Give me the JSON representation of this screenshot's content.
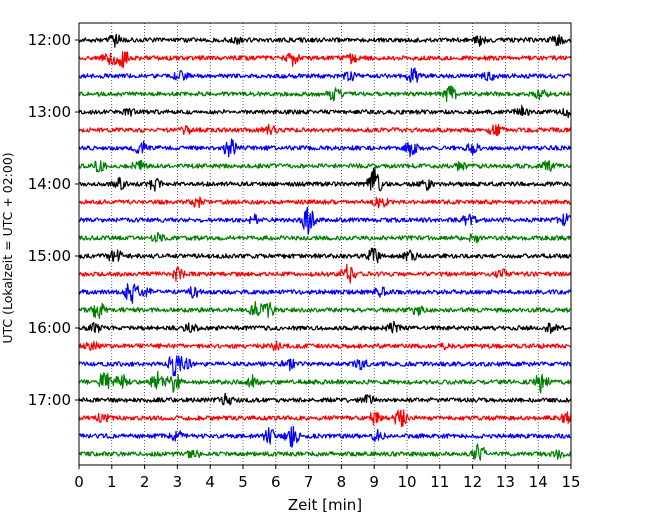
{
  "chart_data": {
    "type": "line",
    "title": "",
    "xlabel": "Zeit  [min]",
    "ylabel": "UTC (Lokalzeit = UTC + 02:00)",
    "xlim": [
      0,
      15
    ],
    "x_ticks": [
      "0",
      "1",
      "2",
      "3",
      "4",
      "5",
      "6",
      "7",
      "8",
      "9",
      "10",
      "11",
      "12",
      "13",
      "14",
      "15"
    ],
    "y_tick_labels": [
      "12:00",
      "13:00",
      "14:00",
      "15:00",
      "16:00",
      "17:00"
    ],
    "grid": "vertical dotted",
    "trace_colors": [
      "#000000",
      "#ff0000",
      "#0000ff",
      "#008000"
    ],
    "trace_interval_min": 15,
    "traces": [
      {
        "start": "12:00",
        "color": "#000000",
        "events": [
          [
            1.1,
            0.6
          ],
          [
            4.8,
            0.4
          ],
          [
            12.2,
            0.5
          ],
          [
            14.6,
            0.5
          ]
        ]
      },
      {
        "start": "12:15",
        "color": "#ff0000",
        "events": [
          [
            0.9,
            0.9
          ],
          [
            1.3,
            1.2
          ],
          [
            6.5,
            0.8
          ],
          [
            8.3,
            0.5
          ]
        ]
      },
      {
        "start": "12:30",
        "color": "#0000ff",
        "events": [
          [
            3.1,
            0.5
          ],
          [
            8.2,
            0.6
          ],
          [
            10.2,
            0.8
          ],
          [
            12.5,
            0.5
          ]
        ]
      },
      {
        "start": "12:45",
        "color": "#008000",
        "events": [
          [
            7.8,
            0.8
          ],
          [
            11.3,
            0.9
          ],
          [
            14.1,
            0.5
          ]
        ]
      },
      {
        "start": "13:00",
        "color": "#000000",
        "events": [
          [
            1.5,
            0.4
          ],
          [
            13.5,
            0.5
          ],
          [
            14.9,
            0.5
          ]
        ]
      },
      {
        "start": "13:15",
        "color": "#ff0000",
        "events": [
          [
            3.3,
            0.4
          ],
          [
            5.8,
            0.5
          ],
          [
            12.7,
            0.6
          ]
        ]
      },
      {
        "start": "13:30",
        "color": "#0000ff",
        "events": [
          [
            1.9,
            0.8
          ],
          [
            4.6,
            1.0
          ],
          [
            10.1,
            0.8
          ],
          [
            12.0,
            0.5
          ]
        ]
      },
      {
        "start": "13:45",
        "color": "#008000",
        "events": [
          [
            0.6,
            0.5
          ],
          [
            1.8,
            0.6
          ],
          [
            11.6,
            0.5
          ],
          [
            14.3,
            0.5
          ]
        ]
      },
      {
        "start": "14:00",
        "color": "#000000",
        "events": [
          [
            1.2,
            0.6
          ],
          [
            2.3,
            0.6
          ],
          [
            9.0,
            1.7
          ],
          [
            10.6,
            0.5
          ]
        ]
      },
      {
        "start": "14:15",
        "color": "#ff0000",
        "events": [
          [
            3.6,
            0.5
          ],
          [
            9.2,
            0.6
          ]
        ]
      },
      {
        "start": "14:30",
        "color": "#0000ff",
        "events": [
          [
            5.4,
            0.6
          ],
          [
            7.0,
            1.6
          ],
          [
            11.9,
            0.6
          ],
          [
            14.8,
            0.6
          ]
        ]
      },
      {
        "start": "14:45",
        "color": "#008000",
        "events": [
          [
            2.4,
            0.4
          ],
          [
            12.1,
            0.5
          ]
        ]
      },
      {
        "start": "15:00",
        "color": "#000000",
        "events": [
          [
            1.1,
            0.8
          ],
          [
            9.0,
            1.0
          ],
          [
            10.1,
            0.5
          ]
        ]
      },
      {
        "start": "15:15",
        "color": "#ff0000",
        "events": [
          [
            3.0,
            0.8
          ],
          [
            8.2,
            1.1
          ],
          [
            12.9,
            0.5
          ]
        ]
      },
      {
        "start": "15:30",
        "color": "#0000ff",
        "events": [
          [
            1.6,
            1.2
          ],
          [
            2.0,
            0.5
          ],
          [
            3.5,
            0.6
          ],
          [
            9.2,
            0.5
          ]
        ]
      },
      {
        "start": "15:45",
        "color": "#008000",
        "events": [
          [
            0.6,
            1.1
          ],
          [
            5.4,
            0.8
          ],
          [
            5.8,
            0.7
          ],
          [
            10.3,
            0.5
          ]
        ]
      },
      {
        "start": "16:00",
        "color": "#000000",
        "events": [
          [
            0.5,
            0.5
          ],
          [
            3.4,
            0.4
          ],
          [
            9.6,
            0.5
          ],
          [
            14.4,
            0.5
          ]
        ]
      },
      {
        "start": "16:15",
        "color": "#ff0000",
        "events": [
          [
            0.4,
            0.4
          ],
          [
            6.0,
            0.5
          ],
          [
            11.2,
            0.4
          ]
        ]
      },
      {
        "start": "16:30",
        "color": "#0000ff",
        "events": [
          [
            2.9,
            1.4
          ],
          [
            3.2,
            0.8
          ],
          [
            6.4,
            0.6
          ],
          [
            8.6,
            0.5
          ]
        ]
      },
      {
        "start": "16:45",
        "color": "#008000",
        "events": [
          [
            0.8,
            1.3
          ],
          [
            1.3,
            0.9
          ],
          [
            2.4,
            1.0
          ],
          [
            2.9,
            1.2
          ],
          [
            5.3,
            0.6
          ],
          [
            14.1,
            1.1
          ]
        ]
      },
      {
        "start": "17:00",
        "color": "#000000",
        "events": [
          [
            4.5,
            0.6
          ],
          [
            8.8,
            0.5
          ]
        ]
      },
      {
        "start": "17:15",
        "color": "#ff0000",
        "events": [
          [
            0.7,
            0.5
          ],
          [
            9.0,
            0.6
          ],
          [
            9.8,
            1.1
          ],
          [
            14.9,
            0.6
          ]
        ]
      },
      {
        "start": "17:30",
        "color": "#0000ff",
        "events": [
          [
            3.0,
            0.5
          ],
          [
            5.8,
            0.8
          ],
          [
            6.5,
            1.1
          ],
          [
            9.1,
            0.6
          ]
        ]
      },
      {
        "start": "17:45",
        "color": "#008000",
        "events": [
          [
            3.5,
            0.4
          ],
          [
            12.2,
            1.1
          ],
          [
            14.6,
            0.4
          ]
        ]
      }
    ]
  }
}
